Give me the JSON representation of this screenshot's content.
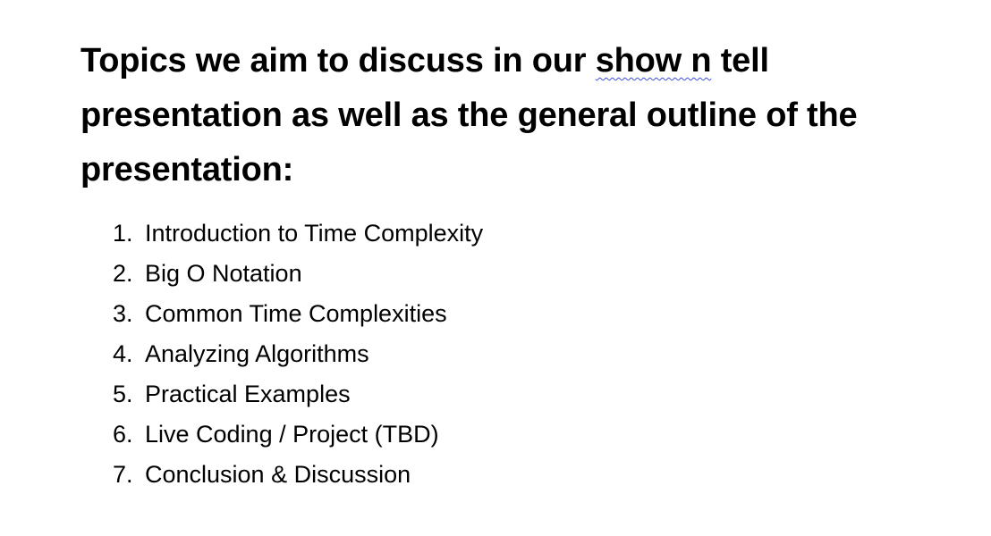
{
  "document": {
    "heading": {
      "before": "Topics we aim to discuss in our ",
      "flagged": "show n",
      "after": " tell presentation as well as the general outline of the presentation:"
    },
    "list": [
      {
        "number": "1.",
        "text": "Introduction to Time Complexity"
      },
      {
        "number": "2.",
        "text": "Big O Notation"
      },
      {
        "number": "3.",
        "text": "Common Time Complexities"
      },
      {
        "number": "4.",
        "text": "Analyzing Algorithms"
      },
      {
        "number": "5.",
        "text": "Practical Examples"
      },
      {
        "number": "6.",
        "text": "Live Coding / Project (TBD)"
      },
      {
        "number": "7.",
        "text": "Conclusion & Discussion"
      }
    ]
  }
}
